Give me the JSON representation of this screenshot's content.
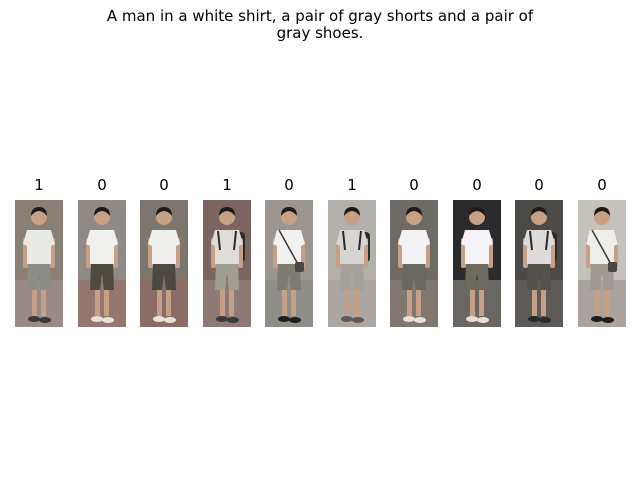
{
  "query": {
    "line1": "A man in a white shirt, a pair of gray shorts and a pair of",
    "line2": "gray shoes."
  },
  "gallery": [
    {
      "label": "1",
      "bg": "#8a7f74",
      "ground": "#9a8a86",
      "shirt": "#e9e9e6",
      "shorts": "#8d8d88",
      "shoe": "#3a3a3a",
      "bag": "none"
    },
    {
      "label": "0",
      "bg": "#8f8a86",
      "ground": "#95766f",
      "shirt": "#f0f0ee",
      "shorts": "#4d4a42",
      "shoe": "#e8e2da",
      "bag": "none"
    },
    {
      "label": "0",
      "bg": "#7d766f",
      "ground": "#8b6d65",
      "shirt": "#eeeeec",
      "shorts": "#4b4942",
      "shoe": "#e8e2da",
      "bag": "none"
    },
    {
      "label": "1",
      "bg": "#7c6560",
      "ground": "#8e7a74",
      "shirt": "#e0ddd8",
      "shorts": "#a09d95",
      "shoe": "#3a3a3a",
      "bag": "backpack"
    },
    {
      "label": "0",
      "bg": "#9a968f",
      "ground": "#8f8d88",
      "shirt": "#f1f1ef",
      "shorts": "#7e7b72",
      "shoe": "#1f1f1f",
      "bag": "shoulder"
    },
    {
      "label": "1",
      "bg": "#b4b0ab",
      "ground": "#aca6a2",
      "shirt": "#d7d5d2",
      "shorts": "#a4a09b",
      "shoe": "#5f5c58",
      "bag": "backpack"
    },
    {
      "label": "0",
      "bg": "#6e6a65",
      "ground": "#80786f",
      "shirt": "#f3f3f5",
      "shorts": "#6a6760",
      "shoe": "#e7e0d8",
      "bag": "none"
    },
    {
      "label": "0",
      "bg": "#2b2b2d",
      "ground": "#6a6763",
      "shirt": "#f5f3f8",
      "shorts": "#6d6a5e",
      "shoe": "#e6dfd5",
      "bag": "none"
    },
    {
      "label": "0",
      "bg": "#4c4a47",
      "ground": "#5d5a57",
      "shirt": "#dedcda",
      "shorts": "#55524c",
      "shoe": "#2a2a2a",
      "bag": "backpack"
    },
    {
      "label": "0",
      "bg": "#c5c1bb",
      "ground": "#a9a39c",
      "shirt": "#eeeeea",
      "shorts": "#9f9a92",
      "shoe": "#1e1e1e",
      "bag": "shoulder"
    }
  ]
}
